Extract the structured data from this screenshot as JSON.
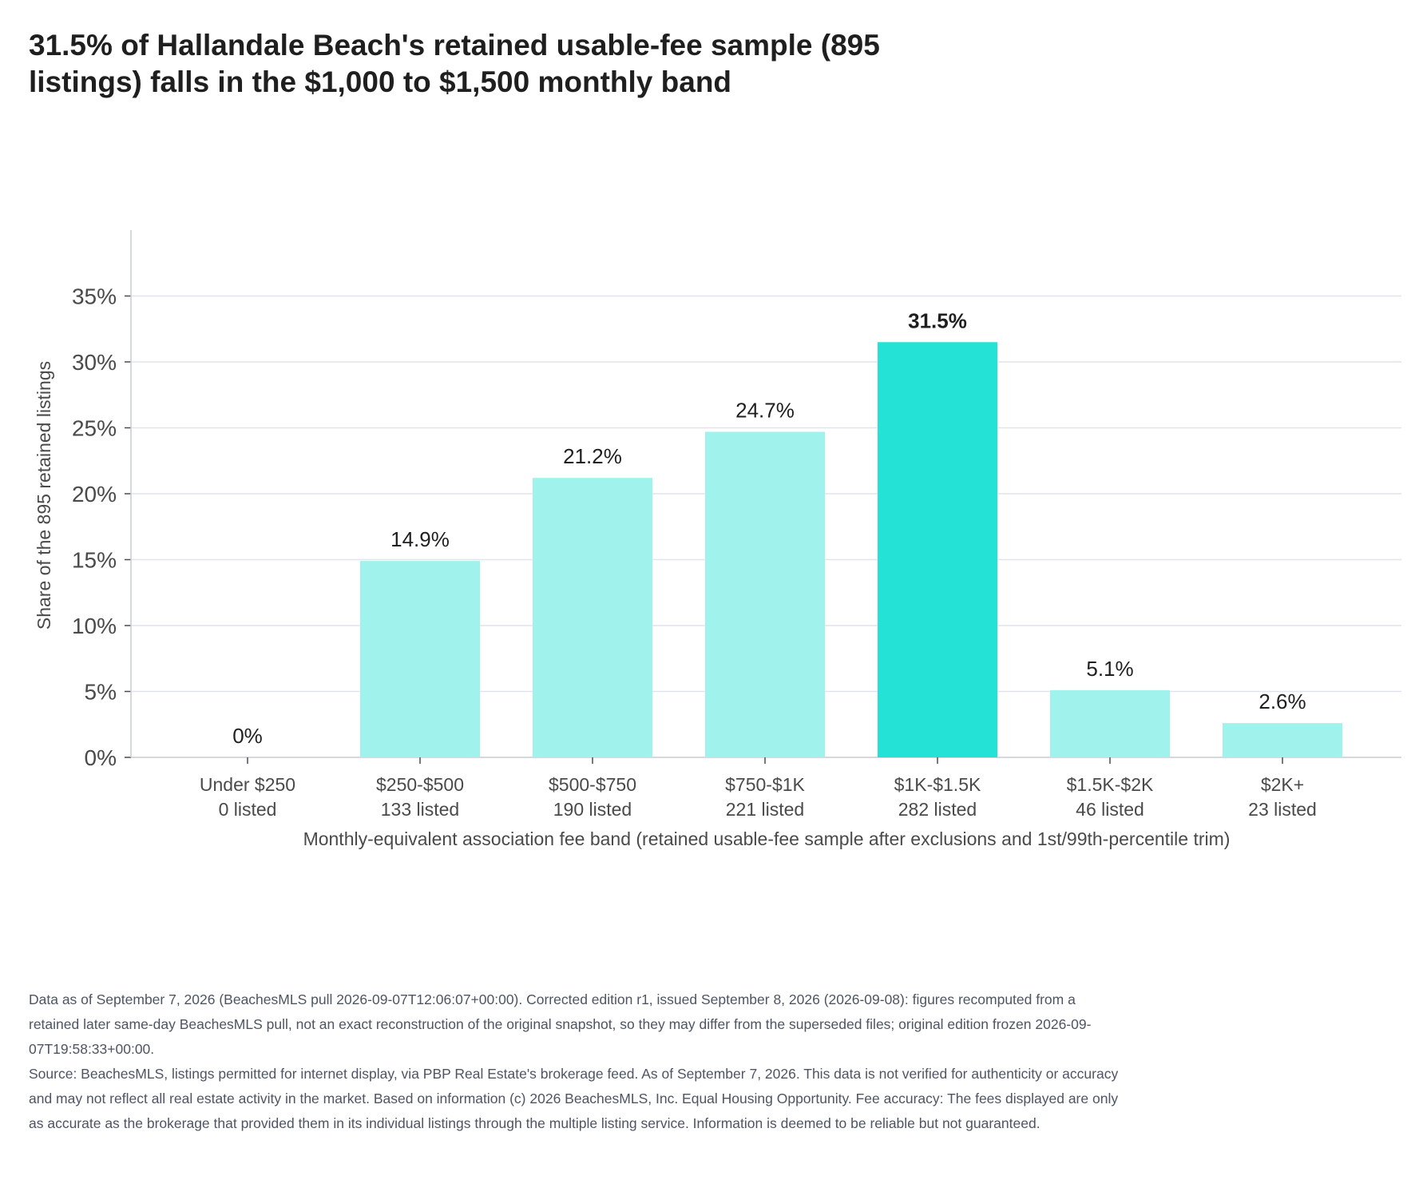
{
  "title": "31.5% of Hallandale Beach's retained usable-fee sample (895 listings) falls in the $1,000 to $1,500 monthly band",
  "chart_data": {
    "type": "bar",
    "title": "31.5% of Hallandale Beach's retained usable-fee sample (895 listings) falls in the $1,000 to $1,500 monthly band",
    "xlabel": "Monthly-equivalent association fee band (retained usable-fee sample after exclusions and 1st/99th-percentile trim)",
    "ylabel": "Share of the 895 retained listings",
    "categories": [
      "Under $250",
      "$250-$500",
      "$500-$750",
      "$750-$1K",
      "$1K-$1.5K",
      "$1.5K-$2K",
      "$2K+"
    ],
    "counts": [
      "0 listed",
      "133 listed",
      "190 listed",
      "221 listed",
      "282 listed",
      "46 listed",
      "23 listed"
    ],
    "values": [
      0,
      14.9,
      21.2,
      24.7,
      31.5,
      5.1,
      2.6
    ],
    "value_labels": [
      "0%",
      "14.9%",
      "21.2%",
      "24.7%",
      "31.5%",
      "5.1%",
      "2.6%"
    ],
    "highlight_index": 4,
    "ylim": [
      0,
      40
    ],
    "yticks": [
      0,
      5,
      10,
      15,
      20,
      25,
      30,
      35
    ],
    "ytick_labels": [
      "0%",
      "5%",
      "10%",
      "15%",
      "20%",
      "25%",
      "30%",
      "35%"
    ],
    "grid": "horizontal",
    "colors": {
      "bar": "#9ff3ec",
      "highlight": "#24e3d6",
      "grid": "#e1e4ee",
      "axis": "#c9ccd6",
      "text": "#1f1f1f",
      "muted": "#4a4a4a"
    }
  },
  "footnotes": {
    "data_note": "Data as of September 7, 2026 (BeachesMLS pull 2026-09-07T12:06:07+00:00). Corrected edition r1, issued September 8, 2026 (2026-09-08): figures recomputed from a retained later same-day BeachesMLS pull, not an exact reconstruction of the original snapshot, so they may differ from the superseded files; original edition frozen 2026-09-07T19:58:33+00:00.",
    "source_note": "Source: BeachesMLS, listings permitted for internet display, via PBP Real Estate's brokerage feed. As of September 7, 2026. This data is not verified for authenticity or accuracy and may not reflect all real estate activity in the market. Based on information (c) 2026 BeachesMLS, Inc. Equal Housing Opportunity. Fee accuracy: The fees displayed are only as accurate as the brokerage that provided them in its individual listings through the multiple listing service. Information is deemed to be reliable but not guaranteed."
  }
}
